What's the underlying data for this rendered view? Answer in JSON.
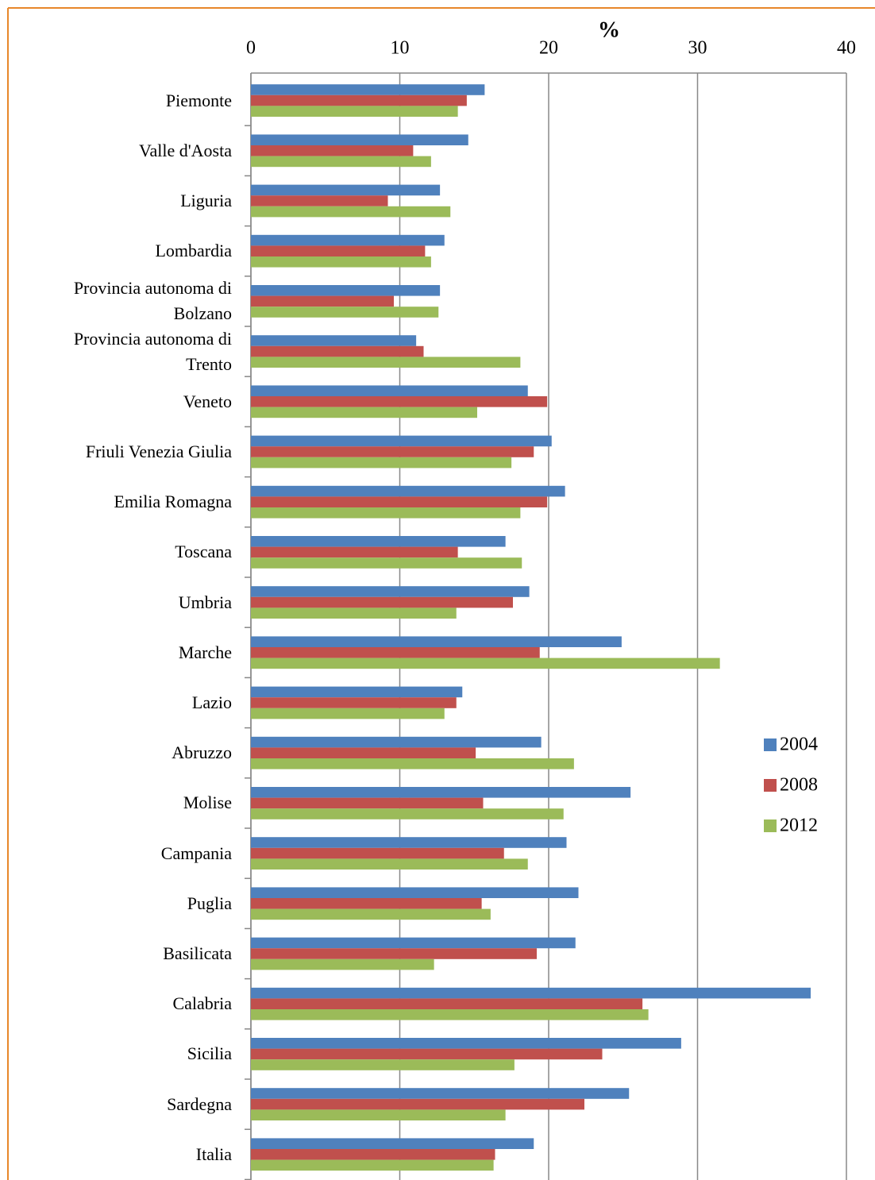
{
  "chart_data": {
    "type": "bar",
    "orientation": "horizontal",
    "xlabel": "%",
    "categories": [
      "Piemonte",
      "Valle d'Aosta",
      "Liguria",
      "Lombardia",
      "Provincia autonoma di Bolzano",
      "Provincia autonoma di Trento",
      "Veneto",
      "Friuli Venezia Giulia",
      "Emilia Romagna",
      "Toscana",
      "Umbria",
      "Marche",
      "Lazio",
      "Abruzzo",
      "Molise",
      "Campania",
      "Puglia",
      "Basilicata",
      "Calabria",
      "Sicilia",
      "Sardegna",
      "Italia"
    ],
    "series": [
      {
        "name": "2004",
        "color": "#4f81bd",
        "values": [
          15.7,
          14.6,
          12.7,
          13.0,
          12.7,
          11.1,
          18.6,
          20.2,
          21.1,
          17.1,
          18.7,
          24.9,
          14.2,
          19.5,
          25.5,
          21.2,
          22.0,
          21.8,
          37.6,
          28.9,
          25.4,
          19.0
        ]
      },
      {
        "name": "2008",
        "color": "#c0504d",
        "values": [
          14.5,
          10.9,
          9.2,
          11.7,
          9.6,
          11.6,
          19.9,
          19.0,
          19.9,
          13.9,
          17.6,
          19.4,
          13.8,
          15.1,
          15.6,
          17.0,
          15.5,
          19.2,
          26.3,
          23.6,
          22.4,
          16.4
        ]
      },
      {
        "name": "2012",
        "color": "#9bbb59",
        "values": [
          13.9,
          12.1,
          13.4,
          12.1,
          12.6,
          18.1,
          15.2,
          17.5,
          18.1,
          18.2,
          13.8,
          31.5,
          13.0,
          21.7,
          21.0,
          18.6,
          16.1,
          12.3,
          26.7,
          17.7,
          17.1,
          16.3
        ]
      }
    ],
    "xlim": [
      0,
      40
    ],
    "xticks": [
      0,
      10,
      20,
      30,
      40
    ],
    "grid": true,
    "legend": "right"
  }
}
